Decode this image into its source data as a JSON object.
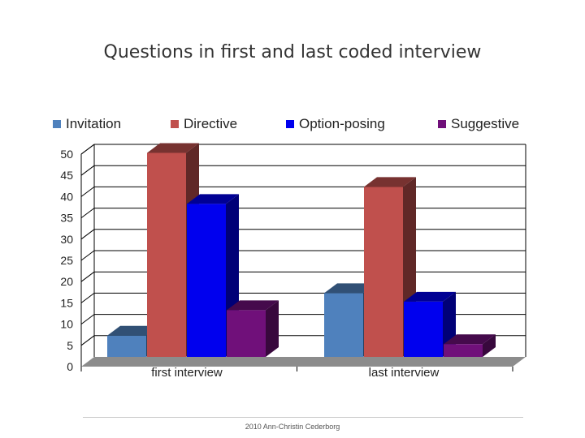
{
  "slide": {
    "title": "Questions in first and last coded interview",
    "footer": "2010 Ann-Christin Cederborg"
  },
  "colors": {
    "Invitation": "#4f81bd",
    "Directive": "#c0504d",
    "Option-posing": "#0000ee",
    "Suggestive": "#70107a",
    "floor": "#8c8c8c",
    "grid": "#000000"
  },
  "chart_data": {
    "type": "bar",
    "style": "3d-clustered-column",
    "title": "Questions in first and last coded interview",
    "xlabel": "",
    "ylabel": "",
    "categories": [
      "first interview",
      "last interview"
    ],
    "series": [
      {
        "name": "Invitation",
        "values": [
          5,
          15
        ]
      },
      {
        "name": "Directive",
        "values": [
          48,
          40
        ]
      },
      {
        "name": "Option-posing",
        "values": [
          36,
          13
        ]
      },
      {
        "name": "Suggestive",
        "values": [
          11,
          3
        ]
      }
    ],
    "ylim": [
      0,
      50
    ],
    "yticks": [
      "0",
      "5",
      "10",
      "15",
      "20",
      "25",
      "30",
      "35",
      "40",
      "45",
      "50"
    ],
    "grid": true,
    "legend_position": "top"
  }
}
